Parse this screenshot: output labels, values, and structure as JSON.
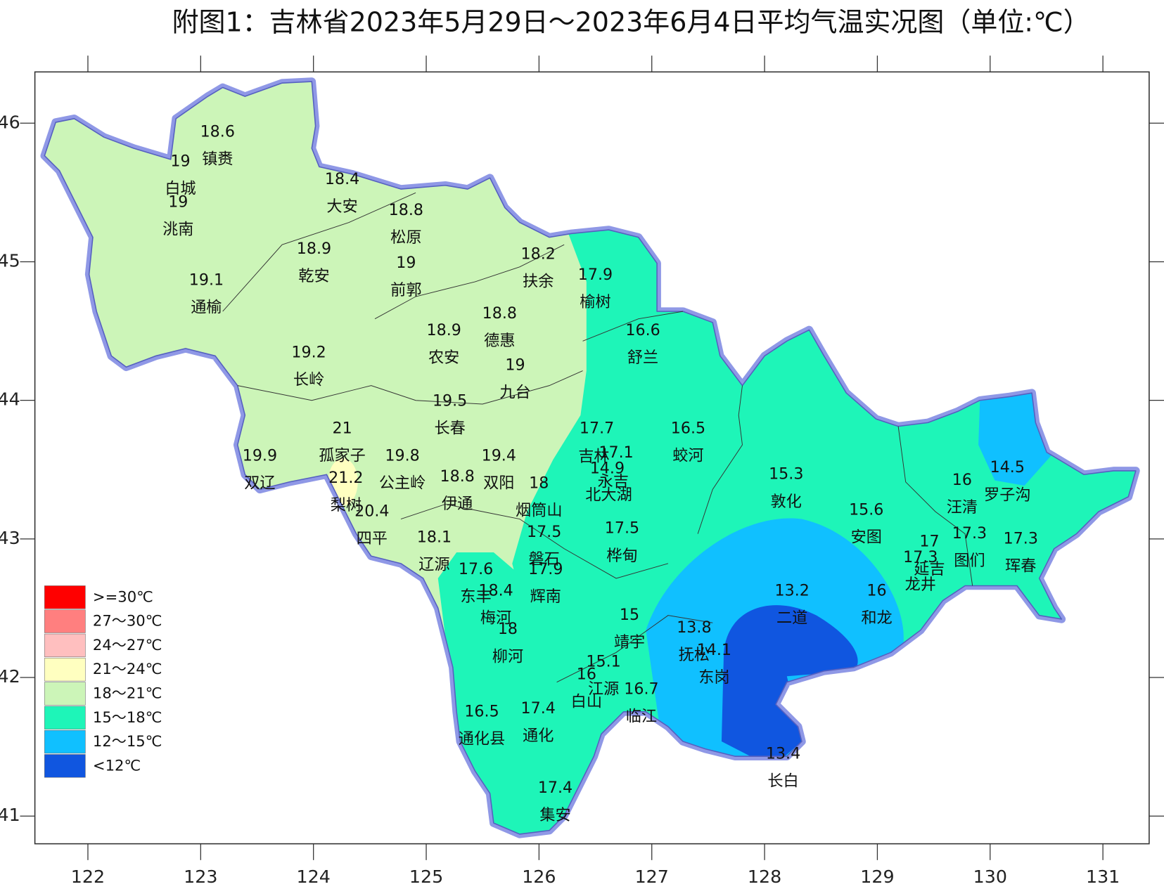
{
  "title": "附图1：吉林省2023年5月29日～2023年6月4日平均气温实况图（单位:℃）",
  "map": {
    "xlim": [
      121.53,
      131.41
    ],
    "ylim": [
      40.8,
      46.37
    ],
    "xticks": [
      122,
      123,
      124,
      125,
      126,
      127,
      128,
      129,
      130,
      131
    ],
    "yticks": [
      41,
      42,
      43,
      44,
      45,
      46
    ]
  },
  "stations": [
    {
      "name": "镇赉",
      "value": 18.6
    },
    {
      "name": "白城",
      "value": 19
    },
    {
      "name": "洮南",
      "value": 19
    },
    {
      "name": "大安",
      "value": 18.4
    },
    {
      "name": "松原",
      "value": 18.8
    },
    {
      "name": "乾安",
      "value": 18.9
    },
    {
      "name": "前郭",
      "value": 19
    },
    {
      "name": "通榆",
      "value": 19.1
    },
    {
      "name": "扶余",
      "value": 18.2
    },
    {
      "name": "榆树",
      "value": 17.9
    },
    {
      "name": "德惠",
      "value": 18.8
    },
    {
      "name": "农安",
      "value": 18.9
    },
    {
      "name": "舒兰",
      "value": 16.6
    },
    {
      "name": "长岭",
      "value": 19.2
    },
    {
      "name": "九台",
      "value": 19
    },
    {
      "name": "长春",
      "value": 19.5
    },
    {
      "name": "孤家子",
      "value": 21
    },
    {
      "name": "吉林",
      "value": 17.7
    },
    {
      "name": "蛟河",
      "value": 16.5
    },
    {
      "name": "双辽",
      "value": 19.9
    },
    {
      "name": "公主岭",
      "value": 19.8
    },
    {
      "name": "双阳",
      "value": 19.4
    },
    {
      "name": "永吉",
      "value": 17.1
    },
    {
      "name": "北大湖",
      "value": 14.9
    },
    {
      "name": "梨树",
      "value": 21.2
    },
    {
      "name": "伊通",
      "value": 18.8
    },
    {
      "name": "烟筒山",
      "value": 18
    },
    {
      "name": "四平",
      "value": 20.4
    },
    {
      "name": "辽源",
      "value": 18.1
    },
    {
      "name": "磐石",
      "value": 17.5
    },
    {
      "name": "桦甸",
      "value": 17.5
    },
    {
      "name": "敦化",
      "value": 15.3
    },
    {
      "name": "安图",
      "value": 15.6
    },
    {
      "name": "汪清",
      "value": 16
    },
    {
      "name": "罗子沟",
      "value": 14.5
    },
    {
      "name": "图们",
      "value": 17.3
    },
    {
      "name": "珲春",
      "value": 17.3
    },
    {
      "name": "延吉",
      "value": 17
    },
    {
      "name": "龙井",
      "value": 17.3
    },
    {
      "name": "东丰",
      "value": 17.6
    },
    {
      "name": "辉南",
      "value": 17.9
    },
    {
      "name": "梅河",
      "value": 18.4
    },
    {
      "name": "柳河",
      "value": 18
    },
    {
      "name": "二道",
      "value": 13.2
    },
    {
      "name": "和龙",
      "value": 16
    },
    {
      "name": "靖宇",
      "value": 15
    },
    {
      "name": "抚松",
      "value": 13.8
    },
    {
      "name": "东岗",
      "value": 14.1
    },
    {
      "name": "江源",
      "value": 15.1
    },
    {
      "name": "白山",
      "value": 16
    },
    {
      "name": "临江",
      "value": 16.7
    },
    {
      "name": "通化县",
      "value": 16.5
    },
    {
      "name": "通化",
      "value": 17.4
    },
    {
      "name": "长白",
      "value": 13.4
    },
    {
      "name": "集安",
      "value": 17.4
    }
  ],
  "legend": [
    {
      "label": ">=30℃",
      "color": "#ff0000"
    },
    {
      "label": "27～30℃",
      "color": "#ff7f7f"
    },
    {
      "label": "24～27℃",
      "color": "#ffbfbf"
    },
    {
      "label": "21～24℃",
      "color": "#ffffc0"
    },
    {
      "label": "18～21℃",
      "color": "#ccf5b8"
    },
    {
      "label": "15～18℃",
      "color": "#1ef5b8"
    },
    {
      "label": "12～15℃",
      "color": "#10c0ff"
    },
    {
      "label": "<12℃",
      "color": "#1056e0"
    }
  ]
}
